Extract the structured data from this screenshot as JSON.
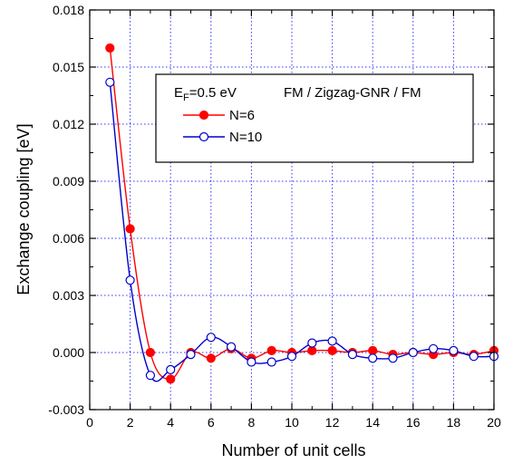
{
  "chart_data": {
    "type": "line",
    "xlabel": "Number of unit cells",
    "ylabel": "Exchange coupling [eV]",
    "xlim": [
      0,
      20
    ],
    "ylim": [
      -0.003,
      0.018
    ],
    "xticks": [
      "0",
      "2",
      "4",
      "6",
      "8",
      "10",
      "12",
      "14",
      "16",
      "18",
      "20"
    ],
    "yticks": [
      "-0.003",
      "0.000",
      "0.003",
      "0.006",
      "0.009",
      "0.012",
      "0.015",
      "0.018"
    ],
    "grid": true,
    "legend_placement": "top-right",
    "legend": {
      "condition_prefix": "E",
      "condition_sub": "F",
      "condition_suffix": "=0.5 eV",
      "structure": "FM / Zigzag-GNR / FM"
    },
    "series": [
      {
        "name": "N=6",
        "color": "#ff0000",
        "marker": "filled-circle",
        "x": [
          1,
          2,
          3,
          4,
          5,
          6,
          7,
          8,
          9,
          10,
          11,
          12,
          13,
          14,
          15,
          16,
          17,
          18,
          19,
          20
        ],
        "values": [
          0.016,
          0.0065,
          0.0,
          -0.0014,
          0.0,
          -0.0003,
          0.0002,
          -0.0003,
          0.0001,
          0.0,
          0.0001,
          0.0001,
          0.0,
          0.0001,
          -0.0001,
          0.0,
          -0.0001,
          0.0,
          -0.0001,
          0.0001
        ]
      },
      {
        "name": "N=10",
        "color": "#0000cc",
        "marker": "open-circle",
        "x": [
          1,
          2,
          3,
          4,
          5,
          6,
          7,
          8,
          9,
          10,
          11,
          12,
          13,
          14,
          15,
          16,
          17,
          18,
          19,
          20
        ],
        "values": [
          0.0142,
          0.0038,
          -0.0012,
          -0.0009,
          -0.0001,
          0.0008,
          0.0003,
          -0.0005,
          -0.0005,
          -0.0002,
          0.0005,
          0.0006,
          -0.0001,
          -0.0003,
          -0.0003,
          0.0,
          0.0002,
          0.0001,
          -0.0002,
          -0.0002
        ]
      }
    ]
  }
}
